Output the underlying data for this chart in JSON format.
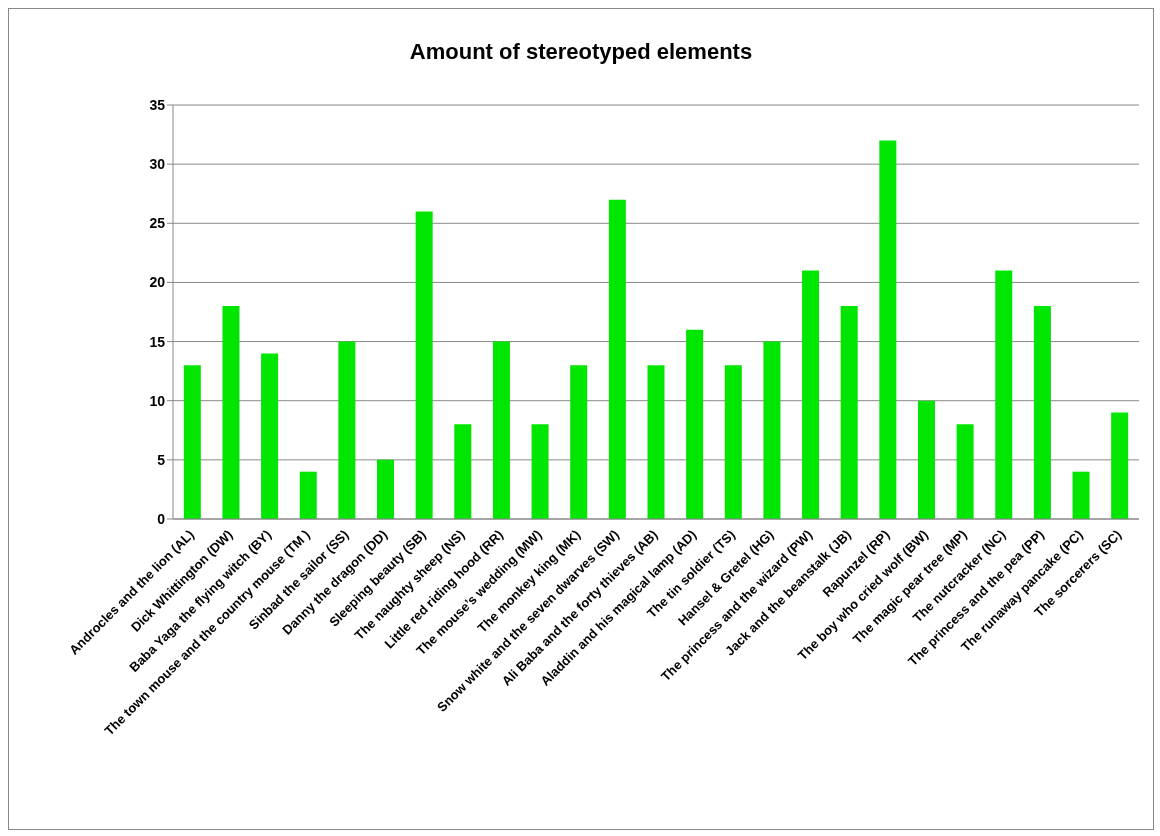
{
  "chart_data": {
    "type": "bar",
    "title": "Amount of stereotyped elements",
    "categories": [
      "Androcles and the lion (AL)",
      "Dick Whittington (DW)",
      "Baba Yaga the flying witch (BY)",
      "The town mouse and the country mouse (TM )",
      "Sinbad the sailor (SS)",
      "Danny the dragon (DD)",
      "Sleeping beauty (SB)",
      "The naughty sheep (NS)",
      "Little red riding hood (RR)",
      "The mouse’s wedding (MW)",
      "The monkey king (MK)",
      "Snow white and the seven dwarves (SW)",
      "Ali Baba and the forty thieves (AB)",
      "Aladdin and his magical lamp (AD)",
      "The tin soldier (TS)",
      "Hansel & Gretel (HG)",
      "The princess and the wizard (PW)",
      "Jack and the beanstalk (JB)",
      "Rapunzel (RP)",
      "The boy who cried wolf (BW)",
      "The magic pear tree (MP)",
      "The nutcracker (NC)",
      "The princess and the pea (PP)",
      "The runaway pancake (PC)",
      "The sorcerers (SC)"
    ],
    "values": [
      13,
      18,
      14,
      4,
      15,
      5,
      26,
      8,
      15,
      8,
      13,
      27,
      13,
      16,
      13,
      15,
      21,
      18,
      32,
      10,
      8,
      21,
      18,
      4,
      9
    ],
    "color": "#00e600",
    "ylim": [
      0,
      35
    ],
    "yticks": [
      0,
      5,
      10,
      15,
      20,
      25,
      30,
      35
    ],
    "grid": "y"
  }
}
